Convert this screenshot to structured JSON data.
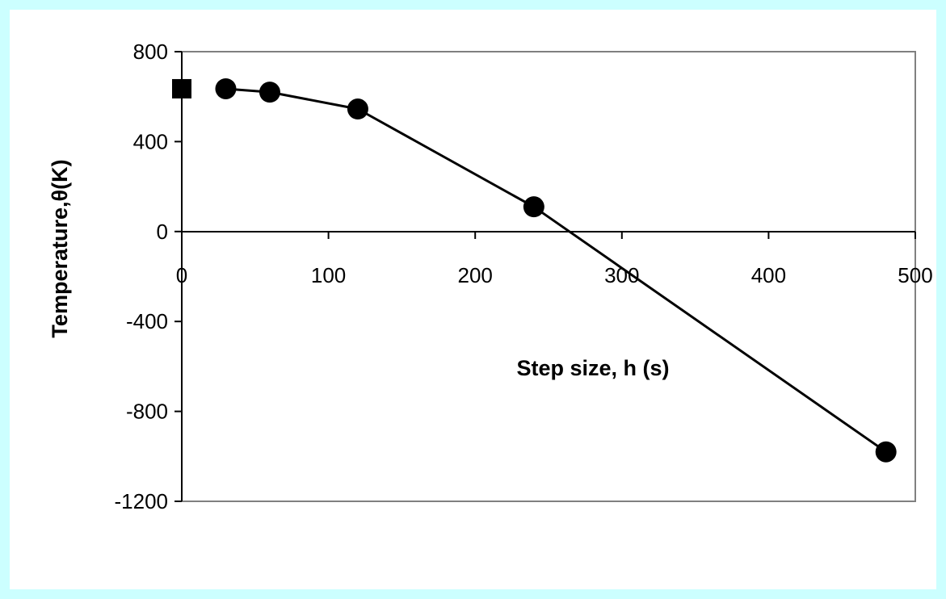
{
  "chart_data": {
    "type": "scatter",
    "xlabel": "Step size, h (s)",
    "ylabel": "Temperature,θ(K)",
    "xlim": [
      0,
      500
    ],
    "ylim": [
      -1200,
      800
    ],
    "x_ticks": [
      "0",
      "100",
      "200",
      "300",
      "400",
      "500"
    ],
    "y_ticks": [
      "800",
      "400",
      "0",
      "-400",
      "-800",
      "-1200"
    ],
    "grid": false,
    "legend": "none",
    "series": [
      {
        "marker": "square",
        "color": "#000000",
        "points": [
          [
            0,
            635
          ]
        ]
      },
      {
        "marker": "circle",
        "color": "#000000",
        "line": true,
        "points": [
          [
            30,
            635
          ],
          [
            60,
            620
          ],
          [
            120,
            545
          ],
          [
            240,
            110
          ],
          [
            480,
            -980
          ]
        ]
      }
    ]
  }
}
